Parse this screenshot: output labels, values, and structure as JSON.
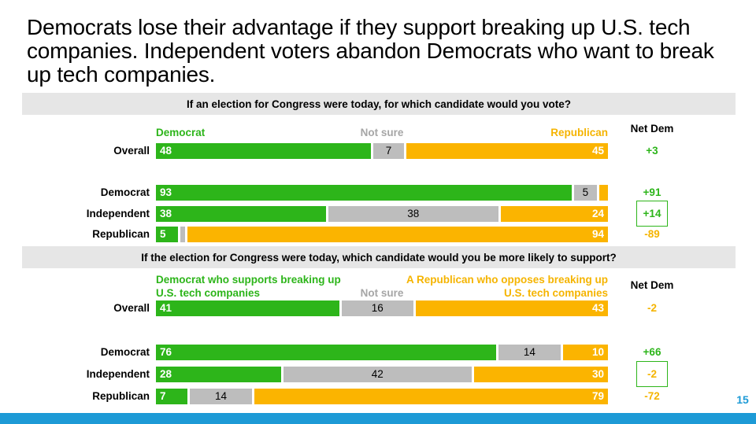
{
  "slide": {
    "title": "Democrats lose their advantage if they support breaking up U.S. tech companies. Independent voters abandon Democrats who want to break up tech companies.",
    "page_number": "15"
  },
  "colors": {
    "democrat": "#2db51a",
    "not_sure": "#bdbdbd",
    "republican": "#fbb400",
    "question_band": "#e6e6e6",
    "footer_band": "#1d9ad6"
  },
  "chart_data": [
    {
      "type": "bar",
      "stacked": true,
      "orientation": "horizontal",
      "title": "If an election for Congress were today, for which candidate would you vote?",
      "headers": {
        "democrat": "Democrat",
        "not_sure": "Not sure",
        "republican": "Republican",
        "net": "Net Dem"
      },
      "categories": [
        "Overall",
        "Democrat",
        "Independent",
        "Republican"
      ],
      "series": [
        {
          "name": "Democrat",
          "values": [
            48,
            93,
            38,
            5
          ]
        },
        {
          "name": "Not sure",
          "values": [
            7,
            5,
            38,
            1
          ]
        },
        {
          "name": "Republican",
          "values": [
            45,
            2,
            24,
            94
          ]
        }
      ],
      "labels": {
        "democrat": [
          "48",
          "93",
          "38",
          "5"
        ],
        "not_sure": [
          "7",
          "5",
          "38",
          ""
        ],
        "republican": [
          "45",
          "",
          "24",
          "94"
        ]
      },
      "net_dem": [
        "+3",
        "+91",
        "+14",
        "-89"
      ],
      "highlighted_row": "Independent"
    },
    {
      "type": "bar",
      "stacked": true,
      "orientation": "horizontal",
      "title": "If the election for Congress were today, which candidate would you be more likely to support?",
      "headers": {
        "democrat": "Democrat who supports breaking up U.S. tech companies",
        "not_sure": "Not sure",
        "republican": "A Republican who opposes breaking up U.S. tech companies",
        "net": "Net Dem"
      },
      "categories": [
        "Overall",
        "Democrat",
        "Independent",
        "Republican"
      ],
      "series": [
        {
          "name": "Democrat who supports breaking up U.S. tech companies",
          "values": [
            41,
            76,
            28,
            7
          ]
        },
        {
          "name": "Not sure",
          "values": [
            16,
            14,
            42,
            14
          ]
        },
        {
          "name": "A Republican who opposes breaking up U.S. tech companies",
          "values": [
            43,
            10,
            30,
            79
          ]
        }
      ],
      "labels": {
        "democrat": [
          "41",
          "76",
          "28",
          "7"
        ],
        "not_sure": [
          "16",
          "14",
          "42",
          "14"
        ],
        "republican": [
          "43",
          "10",
          "30",
          "79"
        ]
      },
      "net_dem": [
        "-2",
        "+66",
        "-2",
        "-72"
      ],
      "highlighted_row": "Independent"
    }
  ]
}
